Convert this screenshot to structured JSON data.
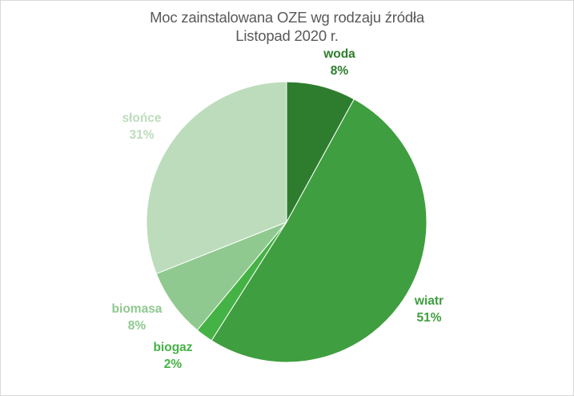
{
  "chart_data": {
    "type": "pie",
    "title": "Moc zainstalowana OZE wg rodzaju źródła",
    "subtitle": "Listopad 2020 r.",
    "slices": [
      {
        "name": "woda",
        "value": 8,
        "label": "8%",
        "color": "#2e7d2e"
      },
      {
        "name": "wiatr",
        "value": 51,
        "label": "51%",
        "color": "#3f9e3f"
      },
      {
        "name": "biogaz",
        "value": 2,
        "label": "2%",
        "color": "#45b245"
      },
      {
        "name": "biomasa",
        "value": 8,
        "label": "8%",
        "color": "#8fc98f"
      },
      {
        "name": "słońce",
        "value": 31,
        "label": "31%",
        "color": "#bcdcbc"
      }
    ],
    "label_colors": {
      "woda": "#2e7d2e",
      "wiatr": "#3f9e3f",
      "biogaz": "#45b245",
      "biomasa": "#8fc98f",
      "słońce": "#bcdcbc"
    }
  }
}
